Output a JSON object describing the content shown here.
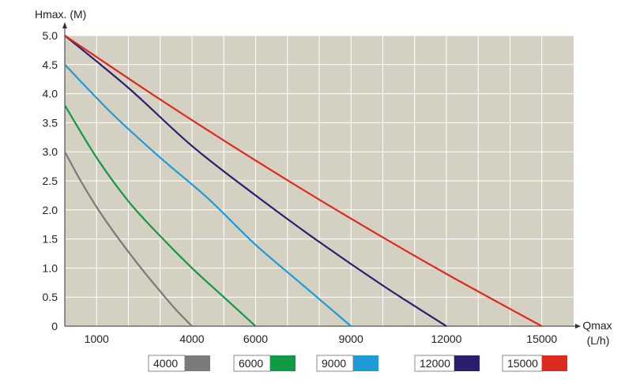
{
  "chart_data": {
    "type": "line",
    "ylabel": "Hmax. (M)",
    "xlabel_line1": "Qmax",
    "xlabel_line2": "(L/h)",
    "xlim": [
      0,
      16000
    ],
    "ylim": [
      0,
      5.0
    ],
    "x_ticks": [
      1000,
      4000,
      6000,
      9000,
      12000,
      15000
    ],
    "y_ticks": [
      0,
      0.5,
      1.0,
      1.5,
      2.0,
      2.5,
      3.0,
      3.5,
      4.0,
      4.5,
      5.0
    ],
    "y_tick_labels": [
      "0",
      "0.5",
      "1.0",
      "1.5",
      "2.0",
      "2.5",
      "3.0",
      "3.5",
      "4.0",
      "4.5",
      "5.0"
    ],
    "grid": true,
    "legend_position": "bottom",
    "background": "#d4d0c2",
    "series": [
      {
        "name": "4000",
        "color": "#7a7a7a",
        "x": [
          0,
          500,
          1000,
          1500,
          2000,
          2500,
          3000,
          3500,
          4000
        ],
        "y": [
          3.0,
          2.5,
          2.05,
          1.65,
          1.28,
          0.93,
          0.6,
          0.28,
          0
        ]
      },
      {
        "name": "6000",
        "color": "#119944",
        "x": [
          0,
          1000,
          2000,
          3000,
          4000,
          5000,
          6000
        ],
        "y": [
          3.8,
          2.9,
          2.15,
          1.55,
          1.0,
          0.5,
          0
        ]
      },
      {
        "name": "9000",
        "color": "#1e9ad6",
        "x": [
          0,
          1500,
          3000,
          4500,
          6000,
          7500,
          9000
        ],
        "y": [
          4.5,
          3.65,
          2.9,
          2.2,
          1.4,
          0.7,
          0
        ]
      },
      {
        "name": "12000",
        "color": "#2a1f6e",
        "x": [
          0,
          2000,
          4000,
          6000,
          8000,
          10000,
          12000
        ],
        "y": [
          5.0,
          4.1,
          3.1,
          2.25,
          1.45,
          0.7,
          0
        ]
      },
      {
        "name": "15000",
        "color": "#dd2b1f",
        "x": [
          0,
          3000,
          6000,
          9000,
          12000,
          15000
        ],
        "y": [
          5.0,
          3.9,
          2.85,
          1.85,
          0.9,
          0
        ]
      }
    ]
  }
}
